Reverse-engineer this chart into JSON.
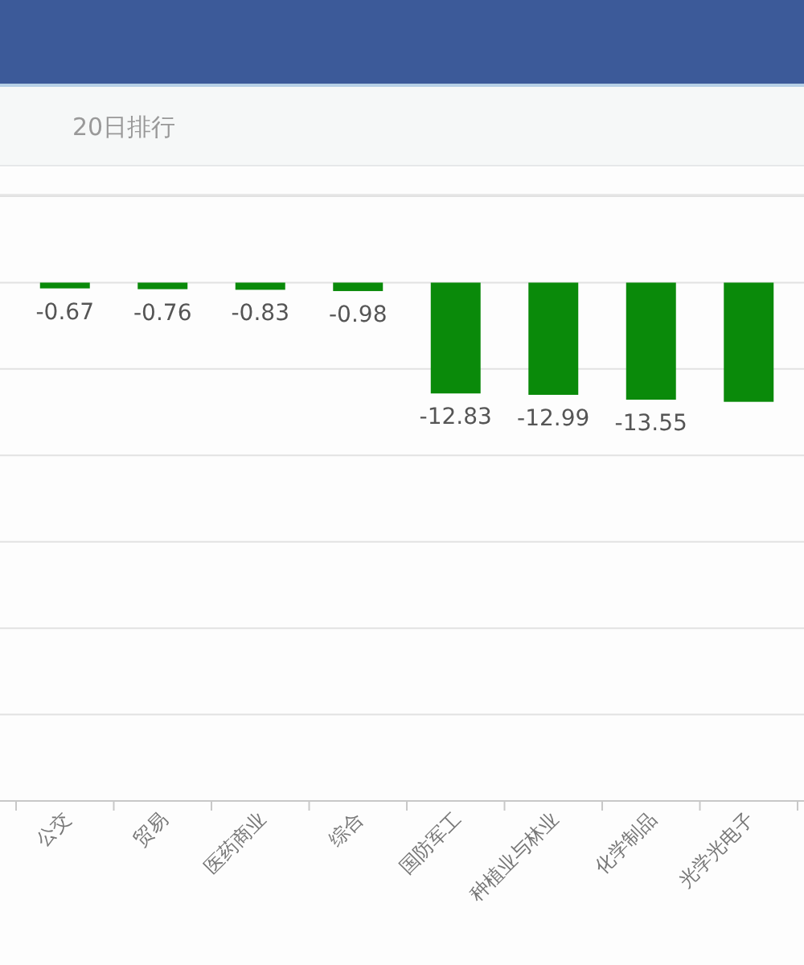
{
  "chart_data": {
    "type": "bar",
    "title": "20日排行",
    "categories": [
      "公交",
      "贸易",
      "医药商业",
      "综合",
      "国防军工",
      "种植业与林业",
      "化学制品",
      "光学光电子"
    ],
    "values": [
      -0.67,
      -0.76,
      -0.83,
      -0.98,
      -12.83,
      -12.99,
      -13.55,
      -13.8
    ],
    "value_labels": [
      "-0.67",
      "-0.76",
      "-0.83",
      "-0.98",
      "-12.83",
      "-12.99",
      "-13.55",
      null
    ],
    "color": "#0a8a0a",
    "ylim": [
      -60,
      10
    ],
    "yticks": [
      -60,
      -50,
      -40,
      -30,
      -20,
      -10,
      0,
      10
    ],
    "grid": "y",
    "tick_labels": "x"
  }
}
